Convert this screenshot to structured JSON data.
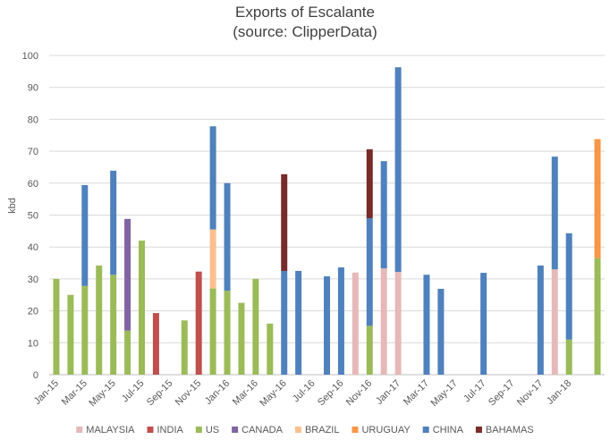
{
  "chart_data": {
    "type": "bar",
    "stacked": true,
    "title": "Exports of Escalante",
    "subtitle": "(source: ClipperData)",
    "xlabel": "",
    "ylabel": "kbd",
    "ylim": [
      0,
      100
    ],
    "yticks": [
      0,
      10,
      20,
      30,
      40,
      50,
      60,
      70,
      80,
      90,
      100
    ],
    "grid": true,
    "legend_position": "bottom",
    "categories": [
      "Jan-15",
      "Feb-15",
      "Mar-15",
      "Apr-15",
      "May-15",
      "Jun-15",
      "Jul-15",
      "Aug-15",
      "Sep-15",
      "Oct-15",
      "Nov-15",
      "Dec-15",
      "Jan-16",
      "Feb-16",
      "Mar-16",
      "Apr-16",
      "May-16",
      "Jun-16",
      "Jul-16",
      "Aug-16",
      "Sep-16",
      "Oct-16",
      "Nov-16",
      "Dec-16",
      "Jan-17",
      "Feb-17",
      "Mar-17",
      "Apr-17",
      "May-17",
      "Jun-17",
      "Jul-17",
      "Aug-17",
      "Sep-17",
      "Oct-17",
      "Nov-17",
      "Dec-17",
      "Jan-18",
      "Feb-18",
      "Mar-18"
    ],
    "x_tick_labels": [
      "Jan-15",
      "Mar-15",
      "May-15",
      "Jul-15",
      "Sep-15",
      "Nov-15",
      "Jan-16",
      "Mar-16",
      "May-16",
      "Jul-16",
      "Sep-16",
      "Nov-16",
      "Jan-17",
      "Mar-17",
      "May-17",
      "Jul-17",
      "Sep-17",
      "Nov-17",
      "Jan-18"
    ],
    "series": [
      {
        "name": "MALAYSIA",
        "color": "#e6b9b8",
        "values": [
          0,
          0,
          0,
          0,
          0,
          0,
          0,
          0,
          0,
          0,
          0,
          0,
          0,
          0,
          0,
          0,
          0,
          0,
          0,
          0,
          0,
          32,
          0,
          33.3,
          32.2,
          0,
          0,
          0,
          0,
          0,
          0,
          0,
          0,
          0,
          0,
          33,
          0,
          0,
          0
        ]
      },
      {
        "name": "INDIA",
        "color": "#c0504d",
        "values": [
          0,
          0,
          0,
          0,
          0,
          0,
          0,
          19.3,
          0,
          0,
          32.3,
          0,
          0,
          0,
          0,
          0,
          0,
          0,
          0,
          0,
          0,
          0,
          0,
          0,
          0,
          0,
          0,
          0,
          0,
          0,
          0,
          0,
          0,
          0,
          0,
          0,
          0,
          0,
          0
        ]
      },
      {
        "name": "US",
        "color": "#9bbb59",
        "values": [
          30,
          25,
          27.8,
          34.2,
          31.3,
          13.8,
          42,
          0,
          0,
          17,
          0,
          27,
          26.3,
          22.5,
          30,
          16,
          0,
          0,
          0,
          0,
          0,
          0,
          15.3,
          0,
          0,
          0,
          0,
          0,
          0,
          0,
          0,
          0,
          0,
          0,
          0,
          0,
          11,
          0,
          36.5
        ]
      },
      {
        "name": "CANADA",
        "color": "#8064a2",
        "values": [
          0,
          0,
          0,
          0,
          0,
          35,
          0,
          0,
          0,
          0,
          0,
          0,
          0,
          0,
          0,
          0,
          0,
          0,
          0,
          0,
          0,
          0,
          0,
          0,
          0,
          0,
          0,
          0,
          0,
          0,
          0,
          0,
          0,
          0,
          0,
          0,
          0,
          0,
          0
        ]
      },
      {
        "name": "BRAZIL",
        "color": "#fac090",
        "values": [
          0,
          0,
          0,
          0,
          0,
          0,
          0,
          0,
          0,
          0,
          0,
          18.5,
          0,
          0,
          0,
          0,
          0,
          0,
          0,
          0,
          0,
          0,
          0,
          0,
          0,
          0,
          0,
          0,
          0,
          0,
          0,
          0,
          0,
          0,
          0,
          0,
          0,
          0,
          0
        ]
      },
      {
        "name": "URUGUAY",
        "color": "#f79646",
        "values": [
          0,
          0,
          0,
          0,
          0,
          0,
          0,
          0,
          0,
          0,
          0,
          0,
          0,
          0,
          0,
          0,
          0,
          0,
          0,
          0,
          0,
          0,
          0,
          0,
          0,
          0,
          0,
          0,
          0,
          0,
          0,
          0,
          0,
          0,
          0,
          0,
          0,
          0,
          37.3
        ]
      },
      {
        "name": "CHINA",
        "color": "#4f81bd",
        "values": [
          0,
          0,
          31.6,
          0,
          32.6,
          0,
          0,
          0,
          0,
          0,
          0,
          32.3,
          33.7,
          0,
          0,
          0,
          32.5,
          32.5,
          0,
          30.8,
          33.6,
          0,
          33.7,
          33.6,
          64.1,
          0,
          31.3,
          26.9,
          0,
          0,
          31.9,
          0,
          0,
          0,
          34.2,
          35.3,
          33.3,
          0,
          0
        ]
      },
      {
        "name": "BAHAMAS",
        "color": "#772c2a",
        "values": [
          0,
          0,
          0,
          0,
          0,
          0,
          0,
          0,
          0,
          0,
          0,
          0,
          0,
          0,
          0,
          0,
          30.3,
          0,
          0,
          0,
          0,
          0,
          21.6,
          0,
          0,
          0,
          0,
          0,
          0,
          0,
          0,
          0,
          0,
          0,
          0,
          0,
          0,
          0,
          0
        ]
      }
    ]
  }
}
